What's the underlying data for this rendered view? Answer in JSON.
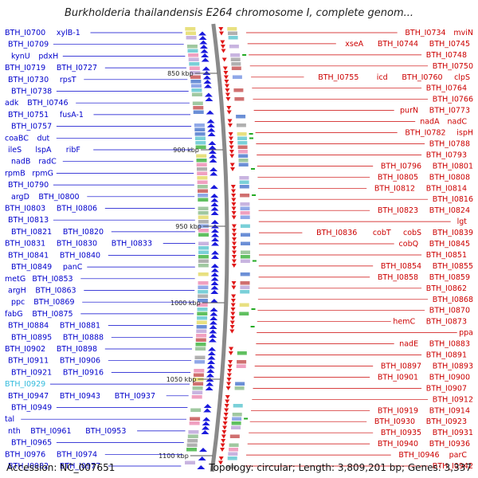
{
  "title": "Burkholderia thailandensis E264 chromosome I, complete genom...",
  "footer": {
    "accession": "Accession: NC_007651",
    "summary": "Topology: circular; Length: 3,809,201 bp; Genes: 3,337"
  },
  "colors": {
    "left_labels": "#0000cc",
    "right_labels": "#cc0000",
    "highlight": "#33bbdd",
    "backbone": "#8a8a8a"
  },
  "scale_ticks": [
    "850 kbp",
    "900 kbp",
    "950 kbp",
    "1000 kbp",
    "1050 kbp",
    "1100 kbp"
  ],
  "left_labels": [
    [
      "BTH_I0700",
      "xylB-1"
    ],
    [
      "BTH_I0709"
    ],
    [
      "kynU",
      "pdxH"
    ],
    [
      "BTH_I0719",
      "BTH_I0727"
    ],
    [
      "BTH_I0730",
      "rpsT"
    ],
    [
      "BTH_I0738"
    ],
    [
      "adk",
      "BTH_I0746"
    ],
    [
      "BTH_I0751",
      "fusA-1"
    ],
    [
      "BTH_I0757"
    ],
    [
      "coaBC",
      "dut"
    ],
    [
      "ileS",
      "lspA",
      "ribF"
    ],
    [
      "nadB",
      "radC"
    ],
    [
      "rpmB",
      "rpmG"
    ],
    [
      "BTH_I0790"
    ],
    [
      "argD",
      "BTH_I0800"
    ],
    [
      "BTH_I0803",
      "BTH_I0806"
    ],
    [
      "BTH_I0813"
    ],
    [
      "BTH_I0821",
      "BTH_I0820"
    ],
    [
      "BTH_I0831",
      "BTH_I0830",
      "BTH_I0833"
    ],
    [
      "BTH_I0841",
      "BTH_I0840"
    ],
    [
      "BTH_I0849",
      "panC"
    ],
    [
      "metG",
      "BTH_I0853"
    ],
    [
      "argH",
      "BTH_I0863"
    ],
    [
      "ppc",
      "BTH_I0869"
    ],
    [
      "fabG",
      "BTH_I0875"
    ],
    [
      "BTH_I0884",
      "BTH_I0881"
    ],
    [
      "BTH_I0895",
      "BTH_I0888"
    ],
    [
      "BTH_I0902",
      "BTH_I0898"
    ],
    [
      "BTH_I0911",
      "BTH_I0906"
    ],
    [
      "BTH_I0921",
      "BTH_I0916"
    ],
    [
      "BTH_I0929"
    ],
    [
      "BTH_I0947",
      "BTH_I0943",
      "BTH_I0937"
    ],
    [
      "BTH_I0949"
    ],
    [
      "tal"
    ],
    [
      "nth",
      "BTH_I0961",
      "BTH_I0953"
    ],
    [
      "BTH_I0965"
    ],
    [
      "BTH_I0976",
      "BTH_I0974"
    ],
    [
      "BTH_I0982",
      "BTH_I0977"
    ]
  ],
  "right_labels": [
    [
      "BTH_I0734",
      "mviN"
    ],
    [
      "xseA",
      "BTH_I0744",
      "BTH_I0745"
    ],
    [
      "BTH_I0748"
    ],
    [
      "BTH_I0750"
    ],
    [
      "BTH_I0755",
      "icd",
      "BTH_I0760",
      "clpS"
    ],
    [
      "BTH_I0764"
    ],
    [
      "BTH_I0766"
    ],
    [
      "purN",
      "BTH_I0773"
    ],
    [
      "nadA",
      "nadC"
    ],
    [
      "BTH_I0782",
      "ispH"
    ],
    [
      "BTH_I0788"
    ],
    [
      "BTH_I0793"
    ],
    [
      "BTH_I0796",
      "BTH_I0801"
    ],
    [
      "BTH_I0805",
      "BTH_I0808"
    ],
    [
      "BTH_I0812",
      "BTH_I0814"
    ],
    [
      "BTH_I0816"
    ],
    [
      "BTH_I0823",
      "BTH_I0824"
    ],
    [
      "lgt"
    ],
    [
      "BTH_I0836",
      "cobT",
      "cobS",
      "BTH_I0839"
    ],
    [
      "cobQ",
      "BTH_I0845"
    ],
    [
      "BTH_I0851"
    ],
    [
      "BTH_I0854",
      "BTH_I0855"
    ],
    [
      "BTH_I0858",
      "BTH_I0859"
    ],
    [
      "BTH_I0862"
    ],
    [
      "BTH_I0868"
    ],
    [
      "BTH_I0870"
    ],
    [
      "hemC",
      "BTH_I0873"
    ],
    [
      "ppa"
    ],
    [
      "nadE",
      "BTH_I0883"
    ],
    [
      "BTH_I0891"
    ],
    [
      "BTH_I0897",
      "BTH_I0893"
    ],
    [
      "BTH_I0901",
      "BTH_I0900"
    ],
    [
      "BTH_I0907"
    ],
    [
      "BTH_I0912"
    ],
    [
      "BTH_I0919",
      "BTH_I0914"
    ],
    [
      "BTH_I0930",
      "BTH_I0923"
    ],
    [
      "BTH_I0935",
      "BTH_I0931"
    ],
    [
      "BTH_I0940",
      "BTH_I0936"
    ],
    [
      "BTH_I0946",
      "parC"
    ],
    [
      "BTH_I0942"
    ]
  ],
  "highlight_label": "BTH_I0929"
}
